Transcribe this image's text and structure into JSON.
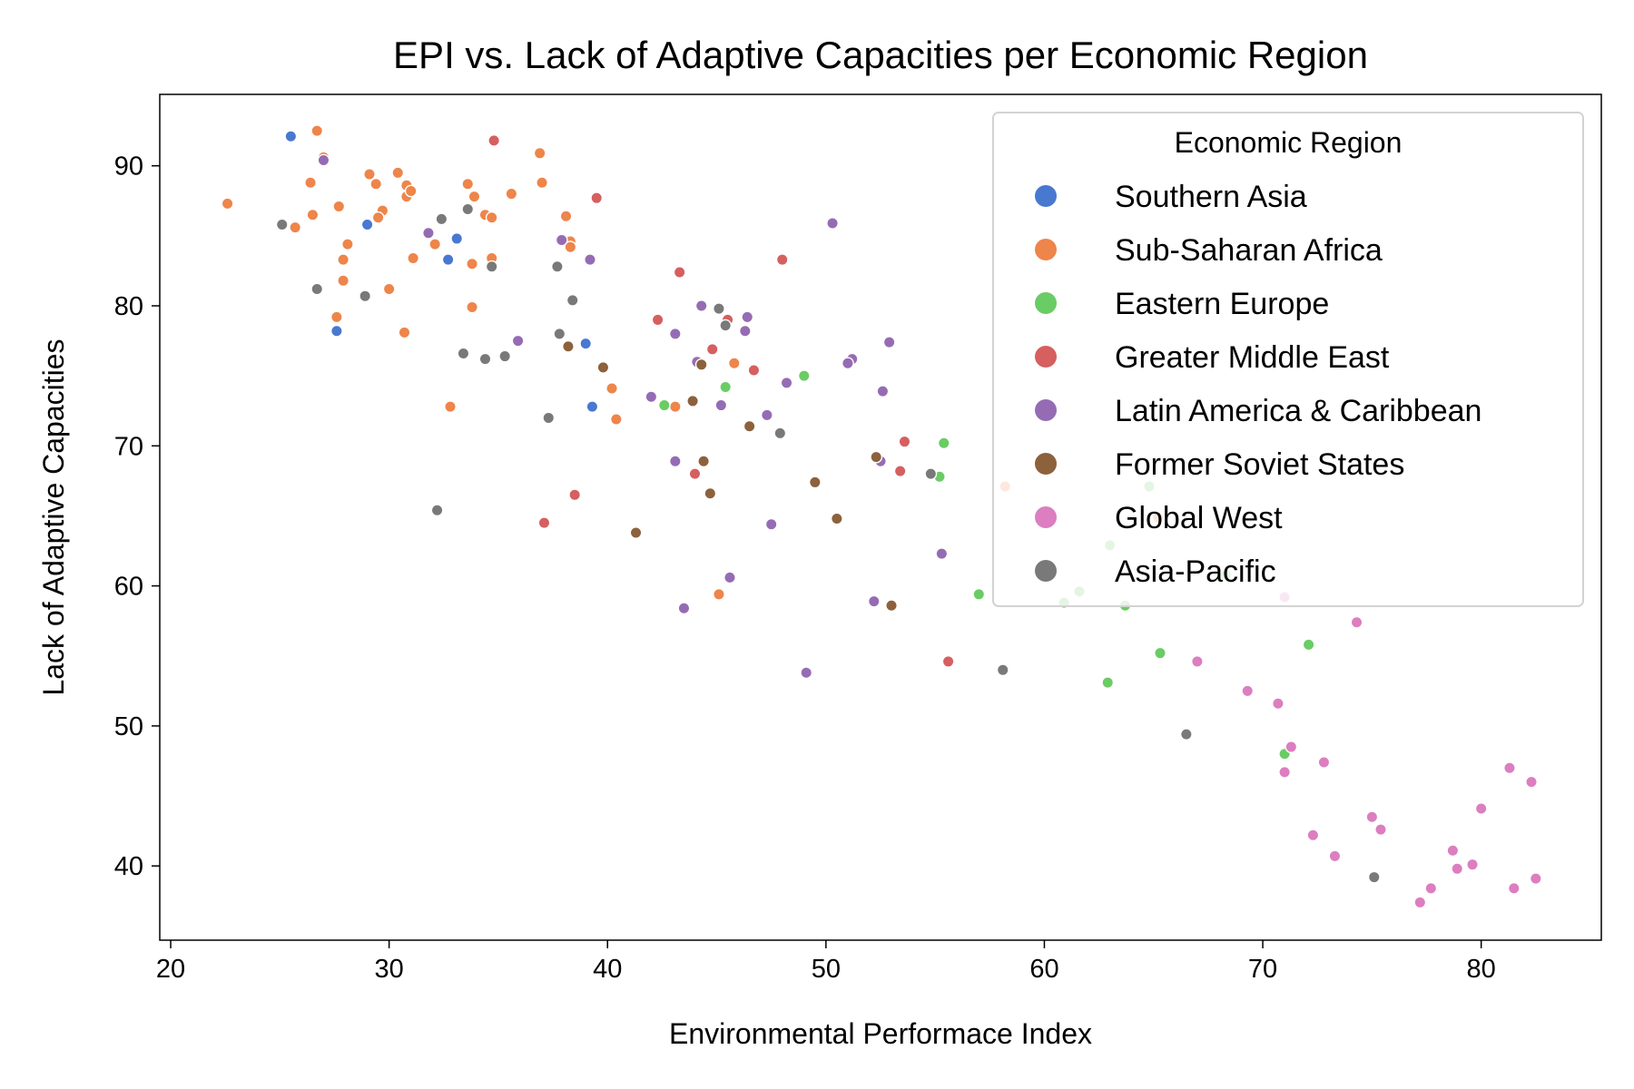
{
  "chart_data": {
    "type": "scatter",
    "title": "EPI vs. Lack of Adaptive Capacities per Economic Region",
    "xlabel": "Environmental Performace Index",
    "ylabel": "Lack of Adaptive Capacities",
    "xlim": [
      19.5,
      85.5
    ],
    "ylim": [
      34.7,
      95.1
    ],
    "xticks": [
      "20",
      "30",
      "40",
      "50",
      "60",
      "70",
      "80"
    ],
    "xtick_values": [
      20,
      30,
      40,
      50,
      60,
      70,
      80
    ],
    "yticks": [
      "40",
      "50",
      "60",
      "70",
      "80",
      "90"
    ],
    "ytick_values": [
      40,
      50,
      60,
      70,
      80,
      90
    ],
    "grid": false,
    "legend_title": "Economic Region",
    "legend_position": "top-right",
    "series": [
      {
        "name": "Southern Asia",
        "color": "#4878d0",
        "points": [
          [
            25.5,
            92.1
          ],
          [
            29.0,
            85.8
          ],
          [
            33.1,
            84.8
          ],
          [
            32.7,
            83.3
          ],
          [
            27.6,
            78.2
          ],
          [
            39.0,
            77.3
          ],
          [
            39.3,
            72.8
          ]
        ]
      },
      {
        "name": "Sub-Saharan Africa",
        "color": "#ee854a",
        "points": [
          [
            22.6,
            87.3
          ],
          [
            26.7,
            92.5
          ],
          [
            27.0,
            90.6
          ],
          [
            26.4,
            88.8
          ],
          [
            26.5,
            86.5
          ],
          [
            25.7,
            85.6
          ],
          [
            27.7,
            87.1
          ],
          [
            27.9,
            83.3
          ],
          [
            28.1,
            84.4
          ],
          [
            27.9,
            81.8
          ],
          [
            27.6,
            79.2
          ],
          [
            29.1,
            89.4
          ],
          [
            29.4,
            88.7
          ],
          [
            30.4,
            89.5
          ],
          [
            30.8,
            88.6
          ],
          [
            30.8,
            87.8
          ],
          [
            31.0,
            88.2
          ],
          [
            29.7,
            86.8
          ],
          [
            29.5,
            86.3
          ],
          [
            31.1,
            83.4
          ],
          [
            30.0,
            81.2
          ],
          [
            30.7,
            78.1
          ],
          [
            32.1,
            84.4
          ],
          [
            33.6,
            88.7
          ],
          [
            33.9,
            87.8
          ],
          [
            34.4,
            86.5
          ],
          [
            34.7,
            86.3
          ],
          [
            33.8,
            83.0
          ],
          [
            34.7,
            83.4
          ],
          [
            33.8,
            79.9
          ],
          [
            32.8,
            72.8
          ],
          [
            36.9,
            90.9
          ],
          [
            37.0,
            88.8
          ],
          [
            35.6,
            88.0
          ],
          [
            38.1,
            86.4
          ],
          [
            38.3,
            84.6
          ],
          [
            38.3,
            84.2
          ],
          [
            40.2,
            74.1
          ],
          [
            40.4,
            71.9
          ],
          [
            43.1,
            72.8
          ],
          [
            45.8,
            75.9
          ],
          [
            45.1,
            59.4
          ],
          [
            58.2,
            67.1
          ],
          [
            65.2,
            64.9
          ]
        ]
      },
      {
        "name": "Eastern Europe",
        "color": "#6acc64",
        "points": [
          [
            42.6,
            72.9
          ],
          [
            45.4,
            74.2
          ],
          [
            49.0,
            75.0
          ],
          [
            55.4,
            70.2
          ],
          [
            55.2,
            67.8
          ],
          [
            57.0,
            59.4
          ],
          [
            60.9,
            58.8
          ],
          [
            61.6,
            59.6
          ],
          [
            63.0,
            62.9
          ],
          [
            63.7,
            58.6
          ],
          [
            64.8,
            67.1
          ],
          [
            62.9,
            53.1
          ],
          [
            65.3,
            55.2
          ],
          [
            68.3,
            60.8
          ],
          [
            72.1,
            55.8
          ],
          [
            71.0,
            48.0
          ]
        ]
      },
      {
        "name": "Greater Middle East",
        "color": "#d65f5f",
        "points": [
          [
            34.8,
            91.8
          ],
          [
            39.5,
            87.7
          ],
          [
            43.3,
            82.4
          ],
          [
            48.0,
            83.3
          ],
          [
            42.3,
            79.0
          ],
          [
            45.5,
            79.0
          ],
          [
            44.8,
            76.9
          ],
          [
            46.7,
            75.4
          ],
          [
            53.6,
            70.3
          ],
          [
            53.4,
            68.2
          ],
          [
            44.0,
            68.0
          ],
          [
            38.5,
            66.5
          ],
          [
            37.1,
            64.5
          ],
          [
            55.6,
            54.6
          ]
        ]
      },
      {
        "name": "Latin America & Caribbean",
        "color": "#956cb4",
        "points": [
          [
            27.0,
            90.4
          ],
          [
            31.8,
            85.2
          ],
          [
            37.9,
            84.7
          ],
          [
            39.2,
            83.3
          ],
          [
            50.3,
            85.9
          ],
          [
            35.9,
            77.5
          ],
          [
            43.1,
            78.0
          ],
          [
            44.3,
            80.0
          ],
          [
            46.4,
            79.2
          ],
          [
            46.3,
            78.2
          ],
          [
            44.1,
            76.0
          ],
          [
            51.2,
            76.2
          ],
          [
            51.0,
            75.9
          ],
          [
            52.9,
            77.4
          ],
          [
            48.2,
            74.5
          ],
          [
            42.0,
            73.5
          ],
          [
            45.2,
            72.9
          ],
          [
            47.3,
            72.2
          ],
          [
            52.6,
            73.9
          ],
          [
            43.1,
            68.9
          ],
          [
            52.5,
            68.9
          ],
          [
            47.5,
            64.4
          ],
          [
            55.3,
            62.3
          ],
          [
            45.6,
            60.6
          ],
          [
            43.5,
            58.4
          ],
          [
            52.2,
            58.9
          ],
          [
            49.1,
            53.8
          ]
        ]
      },
      {
        "name": "Former Soviet States",
        "color": "#8c613c",
        "points": [
          [
            38.2,
            77.1
          ],
          [
            39.8,
            75.6
          ],
          [
            44.3,
            75.8
          ],
          [
            43.9,
            73.2
          ],
          [
            46.5,
            71.4
          ],
          [
            44.4,
            68.9
          ],
          [
            44.7,
            66.6
          ],
          [
            49.5,
            67.4
          ],
          [
            52.3,
            69.2
          ],
          [
            41.3,
            63.8
          ],
          [
            50.5,
            64.8
          ],
          [
            53.0,
            58.6
          ]
        ]
      },
      {
        "name": "Global West",
        "color": "#dc7ec0",
        "points": [
          [
            71.0,
            59.2
          ],
          [
            74.3,
            57.4
          ],
          [
            67.0,
            54.6
          ],
          [
            69.3,
            52.5
          ],
          [
            70.7,
            51.6
          ],
          [
            71.3,
            48.5
          ],
          [
            71.0,
            46.7
          ],
          [
            72.8,
            47.4
          ],
          [
            81.3,
            47.0
          ],
          [
            82.3,
            46.0
          ],
          [
            80.0,
            44.1
          ],
          [
            75.0,
            43.5
          ],
          [
            75.4,
            42.6
          ],
          [
            72.3,
            42.2
          ],
          [
            78.7,
            41.1
          ],
          [
            73.3,
            40.7
          ],
          [
            78.9,
            39.8
          ],
          [
            79.6,
            40.1
          ],
          [
            81.5,
            38.4
          ],
          [
            82.5,
            39.1
          ],
          [
            77.7,
            38.4
          ],
          [
            77.2,
            37.4
          ]
        ]
      },
      {
        "name": "Asia-Pacific",
        "color": "#797979",
        "points": [
          [
            25.1,
            85.8
          ],
          [
            26.7,
            81.2
          ],
          [
            28.9,
            80.7
          ],
          [
            32.4,
            86.2
          ],
          [
            33.6,
            86.9
          ],
          [
            34.7,
            82.8
          ],
          [
            37.7,
            82.8
          ],
          [
            38.4,
            80.4
          ],
          [
            37.8,
            78.0
          ],
          [
            33.4,
            76.6
          ],
          [
            34.4,
            76.2
          ],
          [
            35.3,
            76.4
          ],
          [
            37.3,
            72.0
          ],
          [
            32.2,
            65.4
          ],
          [
            45.1,
            79.8
          ],
          [
            45.4,
            78.6
          ],
          [
            47.9,
            70.9
          ],
          [
            54.8,
            68.0
          ],
          [
            58.1,
            54.0
          ],
          [
            66.5,
            49.4
          ],
          [
            75.1,
            39.2
          ]
        ]
      }
    ]
  }
}
